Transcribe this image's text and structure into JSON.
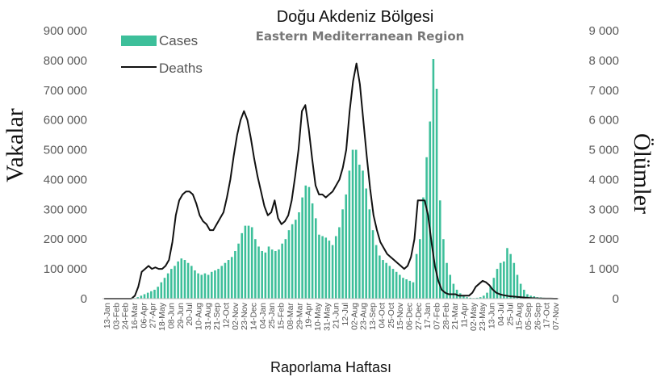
{
  "chart_data": {
    "type": "bar",
    "title": "Doğu Akdeniz Bölgesi",
    "subtitle": "Eastern Mediterranean Region",
    "xlabel": "Raporlama Haftası",
    "ylabel_left": "Vakalar",
    "ylabel_right": "Ölümler",
    "ylim_left": [
      0,
      900000
    ],
    "ylim_right": [
      0,
      9000
    ],
    "yticks_left": [
      "0",
      "100 000",
      "200 000",
      "300 000",
      "400 000",
      "500 000",
      "600 000",
      "700 000",
      "800 000",
      "900 000"
    ],
    "yticks_right": [
      "0",
      "1 000",
      "2 000",
      "3 000",
      "4 000",
      "5 000",
      "6 000",
      "7 000",
      "8 000",
      "9 000"
    ],
    "x_tick_labels": [
      "13-Jan",
      "03-Feb",
      "24-Feb",
      "16-Mar",
      "06-Apr",
      "27-Apr",
      "18-May",
      "08-Jun",
      "29-Jun",
      "20-Jul",
      "10-Aug",
      "31-Aug",
      "21-Sep",
      "12-Oct",
      "02-Nov",
      "23-Nov",
      "14-Dec",
      "04-Jan",
      "25-Jan",
      "15-Feb",
      "08-Mar",
      "29-Mar",
      "19-Apr",
      "10-May",
      "31-May",
      "21-Jun",
      "12-Jul",
      "02-Aug",
      "23-Aug",
      "13-Sep",
      "04-Oct",
      "25-Oct",
      "15-Nov",
      "06-Dec",
      "27-Dec",
      "17-Jan",
      "07-Feb",
      "28-Feb",
      "21-Mar",
      "11-Apr",
      "02-May",
      "23-May",
      "13-Jun",
      "04-Jul",
      "25-Jul",
      "15-Aug",
      "05-Sep",
      "26-Sep",
      "17-Oct",
      "07-Nov"
    ],
    "legend_position": "top-left",
    "grid": false,
    "colors": {
      "cases": "#3dbf9a",
      "deaths": "#111111"
    },
    "series": [
      {
        "name": "Cases",
        "type": "bar",
        "axis": "left",
        "values": [
          0,
          0,
          0,
          0,
          0,
          0,
          0,
          0,
          0,
          2000,
          5000,
          10000,
          15000,
          20000,
          25000,
          30000,
          40000,
          55000,
          70000,
          85000,
          100000,
          110000,
          125000,
          135000,
          130000,
          120000,
          110000,
          95000,
          85000,
          80000,
          85000,
          80000,
          90000,
          95000,
          100000,
          110000,
          120000,
          130000,
          140000,
          160000,
          185000,
          220000,
          245000,
          245000,
          240000,
          200000,
          175000,
          160000,
          155000,
          175000,
          165000,
          160000,
          165000,
          185000,
          200000,
          230000,
          250000,
          265000,
          290000,
          340000,
          380000,
          375000,
          320000,
          270000,
          215000,
          210000,
          205000,
          195000,
          180000,
          210000,
          240000,
          300000,
          350000,
          430000,
          500000,
          500000,
          450000,
          430000,
          370000,
          300000,
          230000,
          180000,
          145000,
          130000,
          120000,
          110000,
          100000,
          90000,
          80000,
          70000,
          65000,
          60000,
          55000,
          150000,
          200000,
          340000,
          475000,
          595000,
          805000,
          705000,
          330000,
          200000,
          120000,
          80000,
          50000,
          30000,
          18000,
          10000,
          5000,
          3000,
          2000,
          3000,
          5000,
          10000,
          20000,
          40000,
          70000,
          100000,
          120000,
          125000,
          170000,
          150000,
          120000,
          80000,
          50000,
          30000,
          15000,
          10000,
          8000,
          5000,
          4000,
          3000,
          2500,
          2000,
          1500,
          1000
        ]
      },
      {
        "name": "Deaths",
        "type": "line",
        "axis": "right",
        "values": [
          0,
          0,
          0,
          0,
          0,
          0,
          0,
          0,
          0,
          100,
          400,
          900,
          1000,
          1100,
          1000,
          1050,
          1000,
          1000,
          1100,
          1300,
          1900,
          2800,
          3300,
          3500,
          3600,
          3600,
          3500,
          3200,
          2800,
          2600,
          2500,
          2300,
          2300,
          2500,
          2700,
          2900,
          3400,
          4000,
          4800,
          5500,
          6000,
          6300,
          6000,
          5400,
          4700,
          4100,
          3600,
          3100,
          2800,
          2900,
          3300,
          2700,
          2500,
          2600,
          2800,
          3300,
          4100,
          5000,
          6300,
          6500,
          5700,
          4700,
          3800,
          3500,
          3500,
          3400,
          3500,
          3600,
          3800,
          4000,
          4400,
          5000,
          6300,
          7300,
          7900,
          7200,
          6000,
          4800,
          3700,
          2800,
          2300,
          1900,
          1700,
          1500,
          1400,
          1300,
          1200,
          1100,
          1000,
          1100,
          1400,
          2000,
          3300,
          3300,
          3300,
          2800,
          1900,
          1100,
          600,
          300,
          200,
          150,
          150,
          150,
          100,
          100,
          100,
          100,
          200,
          400,
          500,
          600,
          550,
          450,
          300,
          200,
          150,
          120,
          100,
          80,
          70,
          60,
          50,
          40,
          30,
          20,
          15,
          10,
          8,
          5,
          3,
          2,
          1,
          0
        ]
      }
    ]
  }
}
